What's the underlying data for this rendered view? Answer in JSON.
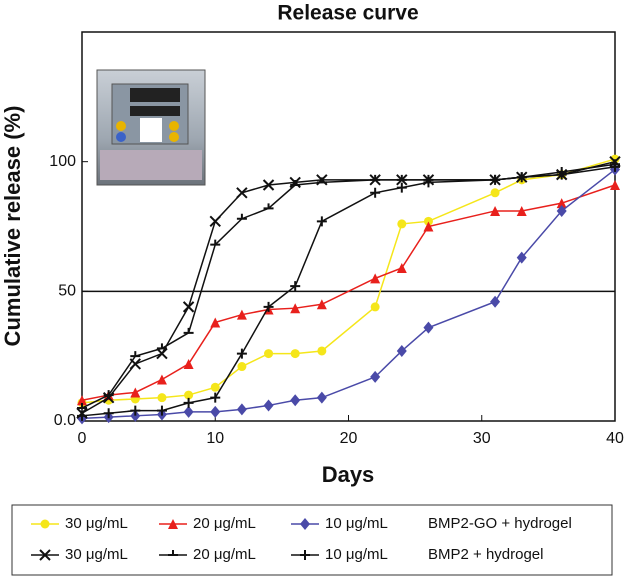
{
  "chart_data": {
    "type": "line",
    "title": "Release curve",
    "x_label": "Days",
    "y_label": "Cumulative release (%)",
    "x": [
      0,
      2,
      4,
      6,
      8,
      10,
      12,
      14,
      16,
      18,
      22,
      24,
      26,
      31,
      33,
      36,
      40
    ],
    "xlim": [
      0,
      40
    ],
    "xticks": [
      0,
      10,
      20,
      30,
      40
    ],
    "ylim": [
      0,
      150
    ],
    "yticks": [
      {
        "value": 0,
        "label": "0.0"
      },
      50,
      100
    ],
    "hline": 50,
    "groups": [
      "BMP2-GO + hydrogel",
      "BMP2 + hydrogel"
    ],
    "series": [
      {
        "name": "30 μg/mL",
        "group": 0,
        "color": "#f5e61a",
        "marker": "circle",
        "values": [
          7,
          8,
          8.5,
          9,
          10,
          13,
          21,
          26,
          26,
          27,
          44,
          76,
          77,
          88,
          93,
          95,
          101
        ]
      },
      {
        "name": "20 μg/mL",
        "group": 0,
        "color": "#e8201c",
        "marker": "triangle",
        "values": [
          8,
          10,
          11,
          16,
          22,
          38,
          41,
          43,
          43.5,
          45,
          55,
          59,
          75,
          81,
          81,
          84,
          91
        ]
      },
      {
        "name": "10 μg/mL",
        "group": 0,
        "color": "#4a4aa8",
        "marker": "diamond",
        "values": [
          1,
          1.5,
          2,
          2.5,
          3.5,
          3.5,
          4.5,
          6,
          8,
          9,
          17,
          27,
          36,
          46,
          63,
          81,
          97
        ]
      },
      {
        "name": "30 μg/mL",
        "group": 1,
        "color": "#111111",
        "marker": "x",
        "values": [
          3,
          9,
          22,
          26,
          44,
          77,
          88,
          91,
          92,
          93,
          93,
          93,
          93,
          93,
          94,
          95,
          100
        ]
      },
      {
        "name": "20 μg/mL",
        "group": 1,
        "color": "#111111",
        "marker": "tick",
        "values": [
          5,
          10,
          25,
          28,
          34,
          68,
          78,
          82,
          91,
          92,
          93,
          93,
          93,
          93,
          94,
          96,
          99
        ]
      },
      {
        "name": "10 μg/mL",
        "group": 1,
        "color": "#111111",
        "marker": "plus",
        "values": [
          2,
          3,
          4,
          4,
          7,
          9,
          26,
          44,
          52,
          77,
          88,
          90,
          92,
          93,
          94,
          95,
          98
        ]
      }
    ]
  }
}
